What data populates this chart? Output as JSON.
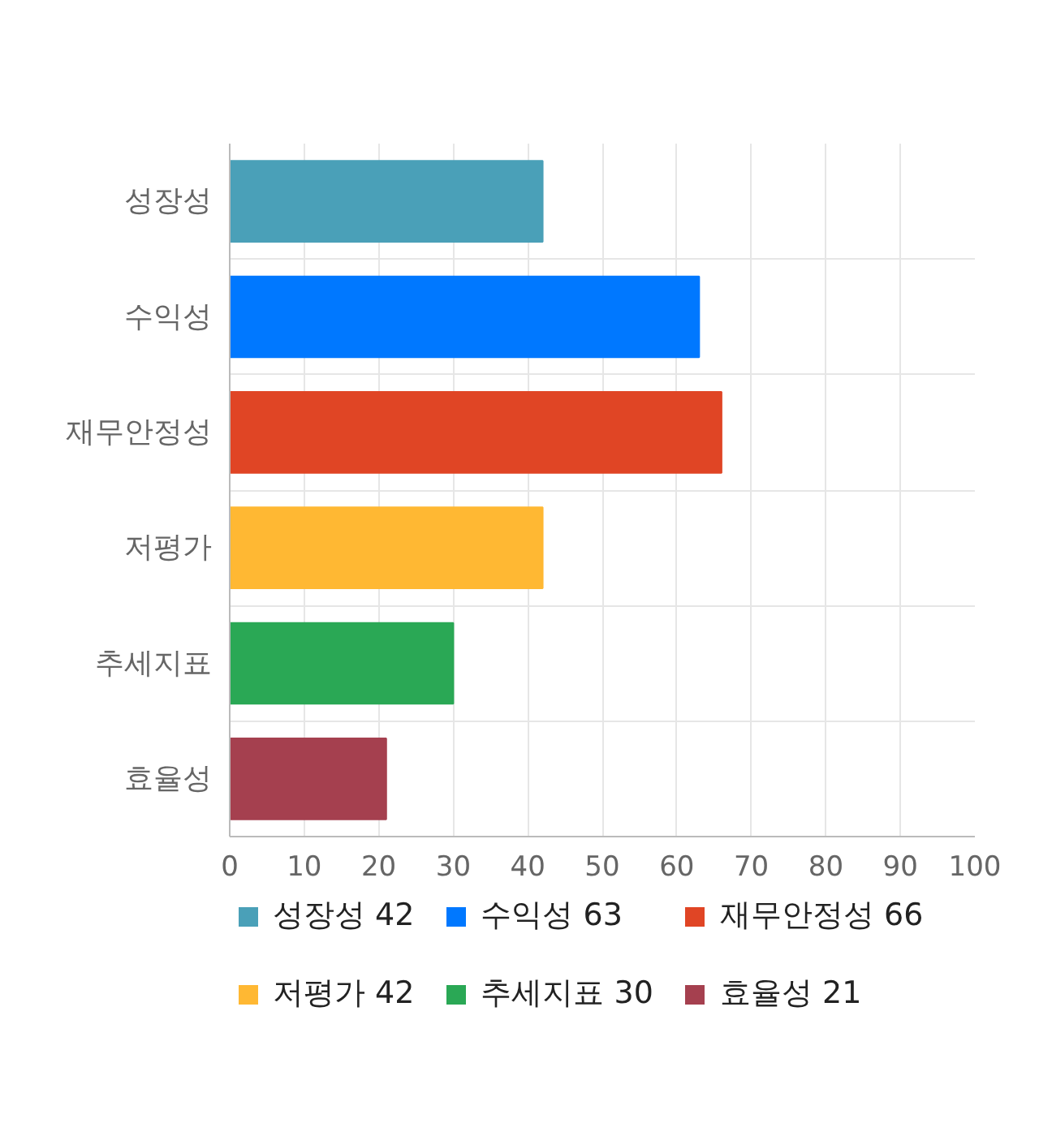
{
  "chart_data": {
    "type": "bar",
    "orientation": "horizontal",
    "categories": [
      "성장성",
      "수익성",
      "재무안정성",
      "저평가",
      "추세지표",
      "효율성"
    ],
    "series": [
      {
        "name": "성장성 42",
        "color": "#4aa0b8",
        "values": [
          42,
          null,
          null,
          null,
          null,
          null
        ]
      },
      {
        "name": "수익성 63",
        "color": "#0078ff",
        "values": [
          null,
          63,
          null,
          null,
          null,
          null
        ]
      },
      {
        "name": "재무안정성 66",
        "color": "#e04525",
        "values": [
          null,
          null,
          66,
          null,
          null,
          null
        ]
      },
      {
        "name": "저평가 42",
        "color": "#ffb833",
        "values": [
          null,
          null,
          null,
          42,
          null,
          null
        ]
      },
      {
        "name": "추세지표 30",
        "color": "#2aa855",
        "values": [
          null,
          null,
          null,
          null,
          30,
          null
        ]
      },
      {
        "name": "효율성 21",
        "color": "#a5404f",
        "values": [
          null,
          null,
          null,
          null,
          null,
          21
        ]
      }
    ],
    "xlim": [
      0,
      100
    ],
    "xticks": [
      0,
      10,
      20,
      30,
      40,
      50,
      60,
      70,
      80,
      90,
      100
    ],
    "grid": true,
    "legend": "bottom"
  }
}
